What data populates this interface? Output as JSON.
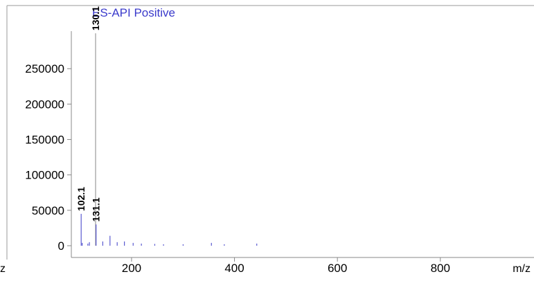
{
  "chart_data": {
    "type": "spectrum",
    "title": "ES-API Positive",
    "x_label": "m/z",
    "cut_label": "z",
    "x": [
      102.1,
      104.1,
      115.1,
      118.1,
      130.1,
      131.1,
      144.1,
      158.1,
      172.1,
      186.1,
      203.1,
      219.1,
      245.1,
      262.1,
      300.2,
      355.2,
      380.2,
      443.3
    ],
    "values": [
      45000,
      4000,
      3000,
      5000,
      300000,
      30000,
      6000,
      14000,
      5000,
      6000,
      4000,
      3000,
      2500,
      2000,
      2000,
      4000,
      2000,
      3000
    ],
    "color": "#5a5ad0",
    "annotations": [
      102.1,
      130.1,
      131.1
    ],
    "xlim": [
      83,
      982
    ],
    "ylim": [
      0,
      303000
    ],
    "xticks": [
      200,
      400,
      600,
      800
    ],
    "yticks": [
      0,
      50000,
      100000,
      150000,
      200000,
      250000
    ]
  }
}
